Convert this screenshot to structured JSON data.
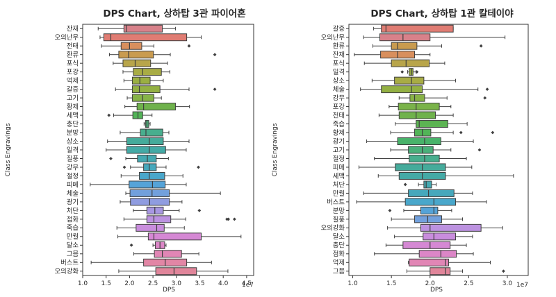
{
  "chart_data": [
    {
      "type": "box",
      "orientation": "horizontal",
      "title": "DPS Chart, 상하탑 3관 파이어혼",
      "xlabel": "DPS",
      "ylabel": "Class Engravings",
      "xlim": [
        1.0,
        4.65
      ],
      "xticks": [
        1.0,
        1.5,
        2.0,
        2.5,
        3.0,
        3.5,
        4.0,
        4.5
      ],
      "tick_labels": [
        "1.0",
        "1.5",
        "2.0",
        "2.5",
        "3.0",
        "3.5",
        "4.0",
        "4.5"
      ],
      "x_scale_label": "1e7",
      "categories": [
        "잔재",
        "오의난무",
        "전태",
        "환류",
        "포식",
        "포강",
        "억제",
        "갈증",
        "고기",
        "황제",
        "세맥",
        "충단",
        "분망",
        "상소",
        "일격",
        "질풍",
        "강무",
        "절정",
        "피메",
        "체술",
        "광기",
        "처단",
        "점화",
        "죽습",
        "만월",
        "달소",
        "그믐",
        "버스트",
        "오의강화"
      ],
      "colors": [
        "#d8818a",
        "#e07c73",
        "#d88f5d",
        "#c99b4f",
        "#b8a54a",
        "#a8ac45",
        "#9aaf42",
        "#93b043",
        "#86b347",
        "#6fb24c",
        "#52b457",
        "#4ab07a",
        "#48ae8e",
        "#45ab9b",
        "#44aaa6",
        "#45a9b1",
        "#46a8bc",
        "#49a7cb",
        "#55a3d8",
        "#72a0dc",
        "#8f9ce0",
        "#a897e2",
        "#bc92e0",
        "#c98ddd",
        "#d588d4",
        "#dc86c7",
        "#e186b5",
        "#e286a5",
        "#e0859a"
      ],
      "boxes": [
        {
          "whislo": 1.33,
          "q1": 1.88,
          "med": 1.93,
          "q3": 2.7,
          "whishi": 2.98,
          "fliers": []
        },
        {
          "whislo": 1.37,
          "q1": 1.45,
          "med": 1.6,
          "q3": 3.22,
          "whishi": 3.53,
          "fliers": []
        },
        {
          "whislo": 1.4,
          "q1": 1.82,
          "med": 2.0,
          "q3": 2.26,
          "whishi": 2.52,
          "fliers": [
            3.27
          ]
        },
        {
          "whislo": 1.57,
          "q1": 1.77,
          "med": 1.98,
          "q3": 2.51,
          "whishi": 2.87,
          "fliers": [
            3.82
          ]
        },
        {
          "whislo": 1.65,
          "q1": 1.86,
          "med": 2.12,
          "q3": 2.45,
          "whishi": 2.81,
          "fliers": []
        },
        {
          "whislo": 1.86,
          "q1": 2.08,
          "med": 2.28,
          "q3": 2.68,
          "whishi": 2.86,
          "fliers": []
        },
        {
          "whislo": 1.88,
          "q1": 2.06,
          "med": 2.22,
          "q3": 2.44,
          "whishi": 2.72,
          "fliers": []
        },
        {
          "whislo": 1.7,
          "q1": 2.06,
          "med": 2.21,
          "q3": 2.65,
          "whishi": 3.27,
          "fliers": [
            3.82
          ]
        },
        {
          "whislo": 1.95,
          "q1": 2.06,
          "med": 2.28,
          "q3": 2.52,
          "whishi": 2.68,
          "fliers": []
        },
        {
          "whislo": 1.9,
          "q1": 2.16,
          "med": 2.3,
          "q3": 2.98,
          "whishi": 3.28,
          "fliers": []
        },
        {
          "whislo": 1.66,
          "q1": 2.07,
          "med": 2.18,
          "q3": 2.28,
          "whishi": 2.48,
          "fliers": [
            1.56
          ]
        },
        {
          "whislo": 2.31,
          "q1": 2.34,
          "med": 2.37,
          "q3": 2.41,
          "whishi": 2.44,
          "fliers": []
        },
        {
          "whislo": 1.8,
          "q1": 2.23,
          "med": 2.35,
          "q3": 2.71,
          "whishi": 2.84,
          "fliers": []
        },
        {
          "whislo": 1.53,
          "q1": 1.94,
          "med": 2.42,
          "q3": 2.72,
          "whishi": 3.27,
          "fliers": []
        },
        {
          "whislo": 1.5,
          "q1": 1.94,
          "med": 2.42,
          "q3": 2.77,
          "whishi": 3.21,
          "fliers": []
        },
        {
          "whislo": 1.92,
          "q1": 2.17,
          "med": 2.38,
          "q3": 2.57,
          "whishi": 2.83,
          "fliers": [
            1.6
          ]
        },
        {
          "whislo": 2.02,
          "q1": 2.3,
          "med": 2.42,
          "q3": 2.57,
          "whishi": 2.78,
          "fliers": [
            1.89,
            3.47
          ]
        },
        {
          "whislo": 1.82,
          "q1": 2.21,
          "med": 2.42,
          "q3": 2.75,
          "whishi": 3.14,
          "fliers": []
        },
        {
          "whislo": 1.16,
          "q1": 1.99,
          "med": 2.49,
          "q3": 2.76,
          "whishi": 3.21,
          "fliers": []
        },
        {
          "whislo": 1.92,
          "q1": 2.01,
          "med": 2.48,
          "q3": 2.85,
          "whishi": 3.94,
          "fliers": []
        },
        {
          "whislo": 1.8,
          "q1": 2.02,
          "med": 2.43,
          "q3": 2.85,
          "whishi": 3.12,
          "fliers": []
        },
        {
          "whislo": 2.08,
          "q1": 2.37,
          "med": 2.54,
          "q3": 2.72,
          "whishi": 3.06,
          "fliers": [
            3.49
          ]
        },
        {
          "whislo": 1.88,
          "q1": 2.37,
          "med": 2.52,
          "q3": 2.88,
          "whishi": 3.2,
          "fliers": [
            4.08,
            4.11,
            4.24
          ]
        },
        {
          "whislo": 1.73,
          "q1": 2.14,
          "med": 2.58,
          "q3": 2.74,
          "whishi": 3.17,
          "fliers": []
        },
        {
          "whislo": 1.75,
          "q1": 2.4,
          "med": 2.52,
          "q3": 3.53,
          "whishi": 4.38,
          "fliers": []
        },
        {
          "whislo": 2.5,
          "q1": 2.55,
          "med": 2.65,
          "q3": 2.75,
          "whishi": 2.78,
          "fliers": [
            2.04
          ]
        },
        {
          "whislo": 2.09,
          "q1": 2.53,
          "med": 2.7,
          "q3": 3.11,
          "whishi": 3.48,
          "fliers": []
        },
        {
          "whislo": 1.18,
          "q1": 2.3,
          "med": 2.76,
          "q3": 3.22,
          "whishi": 3.75,
          "fliers": []
        },
        {
          "whislo": 1.77,
          "q1": 2.56,
          "med": 2.95,
          "q3": 3.43,
          "whishi": 4.1,
          "fliers": []
        }
      ]
    },
    {
      "type": "box",
      "orientation": "horizontal",
      "title": "DPS Chart, 상하탑 1관 칼테이야",
      "xlabel": "DPS",
      "ylabel": "Class Engravings",
      "xlim": [
        0.95,
        3.27
      ],
      "xticks": [
        1.0,
        1.5,
        2.0,
        2.5,
        3.0
      ],
      "tick_labels": [
        "1.0",
        "1.5",
        "2.0",
        "2.5",
        "3.0"
      ],
      "x_scale_label": "1e7",
      "categories": [
        "갈증",
        "오의난무",
        "환류",
        "잔재",
        "포식",
        "일격",
        "상소",
        "체술",
        "강무",
        "포강",
        "전태",
        "죽습",
        "황제",
        "광기",
        "고기",
        "절정",
        "피메",
        "세맥",
        "처단",
        "만월",
        "버스트",
        "분망",
        "질풍",
        "오의강화",
        "달소",
        "충단",
        "점화",
        "억제",
        "그믐"
      ],
      "colors": [
        "#e07c73",
        "#d8818a",
        "#c99b4f",
        "#d88f5d",
        "#b8a54a",
        "#9aaf42",
        "#a8ac45",
        "#93b043",
        "#88b246",
        "#7ab349",
        "#6fb24c",
        "#5cb453",
        "#52b457",
        "#48b36a",
        "#4ab07a",
        "#48ae8e",
        "#45ab9b",
        "#44aaa6",
        "#45a9b1",
        "#46a8bc",
        "#49a7cb",
        "#55a3d8",
        "#72a0dc",
        "#bc92e0",
        "#c98ddd",
        "#d588d4",
        "#dc86c7",
        "#e186b5",
        "#e0859a"
      ],
      "boxes": [
        {
          "whislo": 1.27,
          "q1": 1.37,
          "med": 1.43,
          "q3": 2.3,
          "whishi": 2.3,
          "fliers": []
        },
        {
          "whislo": 1.14,
          "q1": 1.35,
          "med": 1.65,
          "q3": 2.0,
          "whishi": 2.97,
          "fliers": []
        },
        {
          "whislo": 1.26,
          "q1": 1.5,
          "med": 1.58,
          "q3": 1.83,
          "whishi": 2.15,
          "fliers": [
            2.66
          ]
        },
        {
          "whislo": 1.02,
          "q1": 1.36,
          "med": 1.58,
          "q3": 1.8,
          "whishi": 2.0,
          "fliers": []
        },
        {
          "whislo": 1.15,
          "q1": 1.5,
          "med": 1.69,
          "q3": 1.99,
          "whishi": 2.19,
          "fliers": []
        },
        {
          "whislo": 1.71,
          "q1": 1.73,
          "med": 1.76,
          "q3": 1.78,
          "whishi": 1.82,
          "fliers": [
            1.64,
            1.83
          ]
        },
        {
          "whislo": 1.25,
          "q1": 1.54,
          "med": 1.76,
          "q3": 1.92,
          "whishi": 2.33,
          "fliers": []
        },
        {
          "whislo": 1.1,
          "q1": 1.37,
          "med": 1.76,
          "q3": 1.9,
          "whishi": 2.62,
          "fliers": [
            2.74
          ]
        },
        {
          "whislo": 1.6,
          "q1": 1.74,
          "med": 1.8,
          "q3": 1.93,
          "whishi": 2.22,
          "fliers": [
            2.71
          ]
        },
        {
          "whislo": 1.47,
          "q1": 1.59,
          "med": 1.82,
          "q3": 2.12,
          "whishi": 2.27,
          "fliers": []
        },
        {
          "whislo": 1.34,
          "q1": 1.6,
          "med": 1.82,
          "q3": 2.07,
          "whishi": 2.3,
          "fliers": []
        },
        {
          "whislo": 1.55,
          "q1": 1.82,
          "med": 1.86,
          "q3": 2.23,
          "whishi": 2.48,
          "fliers": []
        },
        {
          "whislo": 1.49,
          "q1": 1.8,
          "med": 1.9,
          "q3": 2.01,
          "whishi": 2.3,
          "fliers": [
            2.4,
            2.81
          ]
        },
        {
          "whislo": 1.18,
          "q1": 1.58,
          "med": 1.93,
          "q3": 2.14,
          "whishi": 2.56,
          "fliers": []
        },
        {
          "whislo": 1.49,
          "q1": 1.72,
          "med": 1.9,
          "q3": 2.04,
          "whishi": 2.27,
          "fliers": [
            2.64
          ]
        },
        {
          "whislo": 1.28,
          "q1": 1.73,
          "med": 1.93,
          "q3": 2.12,
          "whishi": 2.47,
          "fliers": []
        },
        {
          "whislo": 1.08,
          "q1": 1.55,
          "med": 1.9,
          "q3": 2.2,
          "whishi": 2.54,
          "fliers": []
        },
        {
          "whislo": 1.33,
          "q1": 1.6,
          "med": 1.9,
          "q3": 2.2,
          "whishi": 3.08,
          "fliers": []
        },
        {
          "whislo": 1.85,
          "q1": 1.92,
          "med": 1.95,
          "q3": 2.02,
          "whishi": 2.08,
          "fliers": [
            1.68
          ]
        },
        {
          "whislo": 1.14,
          "q1": 1.72,
          "med": 1.98,
          "q3": 2.31,
          "whishi": 2.55,
          "fliers": []
        },
        {
          "whislo": 1.05,
          "q1": 1.68,
          "med": 2.05,
          "q3": 2.33,
          "whishi": 2.73,
          "fliers": []
        },
        {
          "whislo": 1.66,
          "q1": 1.88,
          "med": 2.05,
          "q3": 2.1,
          "whishi": 2.28,
          "fliers": [
            1.48
          ]
        },
        {
          "whislo": 1.5,
          "q1": 1.8,
          "med": 1.97,
          "q3": 2.15,
          "whishi": 2.42,
          "fliers": []
        },
        {
          "whislo": 1.45,
          "q1": 1.88,
          "med": 2.0,
          "q3": 2.66,
          "whishi": 2.94,
          "fliers": []
        },
        {
          "whislo": 1.54,
          "q1": 1.91,
          "med": 2.05,
          "q3": 2.33,
          "whishi": 2.55,
          "fliers": []
        },
        {
          "whislo": 1.43,
          "q1": 1.65,
          "med": 2.0,
          "q3": 2.26,
          "whishi": 2.47,
          "fliers": []
        },
        {
          "whislo": 1.28,
          "q1": 1.86,
          "med": 2.14,
          "q3": 2.34,
          "whishi": 2.56,
          "fliers": []
        },
        {
          "whislo": 1.72,
          "q1": 1.73,
          "med": 2.2,
          "q3": 2.24,
          "whishi": 2.78,
          "fliers": []
        },
        {
          "whislo": 1.7,
          "q1": 2.0,
          "med": 2.2,
          "q3": 2.26,
          "whishi": 2.42,
          "fliers": [
            2.95
          ]
        }
      ]
    }
  ]
}
